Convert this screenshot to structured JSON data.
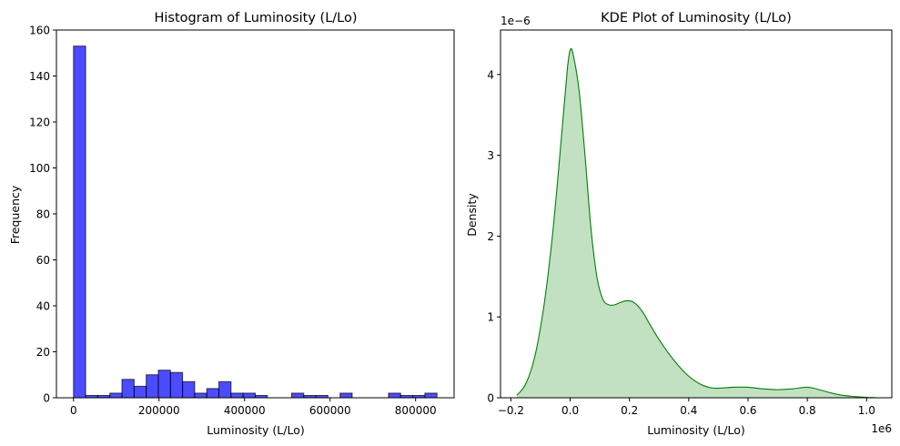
{
  "chart_data": [
    {
      "type": "bar",
      "title": "Histogram of Luminosity (L/Lo)",
      "xlabel": "Luminosity (L/Lo)",
      "ylabel": "Frequency",
      "xlim": [
        -40000,
        890000
      ],
      "ylim": [
        0,
        160
      ],
      "xticks": [
        0,
        200000,
        400000,
        600000,
        800000
      ],
      "xtick_labels": [
        "0",
        "200000",
        "400000",
        "600000",
        "800000"
      ],
      "yticks": [
        0,
        20,
        40,
        60,
        80,
        100,
        120,
        140,
        160
      ],
      "ytick_labels": [
        "0",
        "20",
        "40",
        "60",
        "80",
        "100",
        "120",
        "140",
        "160"
      ],
      "bar_color": "#0000ff",
      "bar_edge_color": "#000000",
      "bin_edges": [
        0,
        28333,
        56667,
        85000,
        113333,
        141667,
        170000,
        198333,
        226667,
        255000,
        283333,
        311667,
        340000,
        368333,
        396667,
        425000,
        453333,
        481667,
        510000,
        538333,
        566667,
        595000,
        623333,
        651667,
        680000,
        708333,
        736667,
        765000,
        793333,
        821667,
        850000
      ],
      "values": [
        153,
        1,
        1,
        2,
        8,
        5,
        10,
        12,
        11,
        7,
        2,
        4,
        7,
        2,
        2,
        1,
        0,
        0,
        2,
        1,
        1,
        0,
        2,
        0,
        0,
        0,
        2,
        1,
        1,
        2
      ],
      "grid": false
    },
    {
      "type": "area",
      "title": "KDE Plot of Luminosity (L/Lo)",
      "xlabel": "Luminosity (L/Lo)",
      "ylabel": "Density",
      "x_offset_label": "1e6",
      "y_offset_label": "1e−6",
      "xlim": [
        -0.235,
        1.085
      ],
      "ylim": [
        0,
        4.55
      ],
      "xticks": [
        -0.2,
        0.0,
        0.2,
        0.4,
        0.6,
        0.8,
        1.0
      ],
      "xtick_labels": [
        "−0.2",
        "0.0",
        "0.2",
        "0.4",
        "0.6",
        "0.8",
        "1.0"
      ],
      "yticks": [
        0,
        1,
        2,
        3,
        4
      ],
      "ytick_labels": [
        "0",
        "1",
        "2",
        "3",
        "4"
      ],
      "line_color": "#008000",
      "fill_color": "#008000",
      "x": [
        -0.18,
        -0.15,
        -0.12,
        -0.09,
        -0.06,
        -0.03,
        -0.01,
        0.0,
        0.01,
        0.03,
        0.05,
        0.07,
        0.09,
        0.11,
        0.13,
        0.15,
        0.17,
        0.19,
        0.21,
        0.23,
        0.25,
        0.27,
        0.3,
        0.33,
        0.36,
        0.39,
        0.42,
        0.45,
        0.48,
        0.51,
        0.55,
        0.6,
        0.65,
        0.7,
        0.75,
        0.8,
        0.84,
        0.88,
        0.92,
        0.96,
        1.0,
        1.03
      ],
      "y": [
        0.03,
        0.17,
        0.5,
        1.1,
        2.0,
        3.2,
        4.05,
        4.3,
        4.25,
        3.8,
        3.0,
        2.1,
        1.5,
        1.22,
        1.15,
        1.15,
        1.18,
        1.2,
        1.19,
        1.13,
        1.03,
        0.9,
        0.72,
        0.56,
        0.42,
        0.3,
        0.21,
        0.15,
        0.12,
        0.12,
        0.13,
        0.13,
        0.11,
        0.1,
        0.11,
        0.13,
        0.1,
        0.06,
        0.03,
        0.015,
        0.005,
        0.002
      ],
      "grid": false
    }
  ]
}
